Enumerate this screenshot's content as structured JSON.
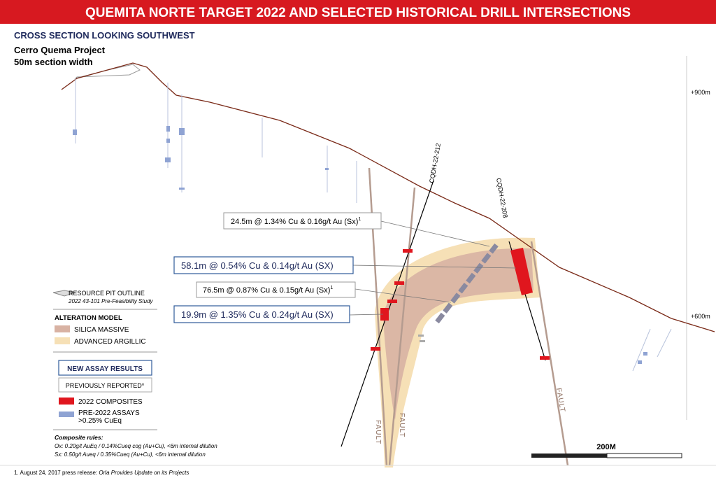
{
  "header": {
    "title": "QUEMITA NORTE TARGET 2022 AND SELECTED HISTORICAL DRILL INTERSECTIONS",
    "subtitle": "CROSS SECTION LOOKING SOUTHWEST"
  },
  "project": {
    "name": "Cerro Quema Project",
    "section_width": "50m section width"
  },
  "elevations": [
    "+900m",
    "+600m"
  ],
  "drill_holes": [
    "CQDH-22-212",
    "CQDH-22-208"
  ],
  "intersections": [
    {
      "text": "24.5m @ 1.34% Cu & 0.16g/t Au (Sx)",
      "note": "1"
    },
    {
      "text": "58.1m @ 0.54% Cu & 0.14g/t Au (SX)"
    },
    {
      "text": "76.5m @ 0.87% Cu & 0.15g/t Au (Sx)",
      "note": "1"
    },
    {
      "text": "19.9m @ 1.35% Cu & 0.24g/t Au (SX)"
    }
  ],
  "faults": [
    "FAULT",
    "FAULT",
    "FAULT"
  ],
  "legend": {
    "pit_outline": "RESOURCE PIT OUTLINE",
    "pit_study": "2022 43-101 Pre-Feasibility Study",
    "alteration_title": "ALTERATION MODEL",
    "silica": "SILICA MASSIVE",
    "argillic": "ADVANCED ARGILLIC",
    "new_results": "NEW ASSAY RESULTS",
    "previously": "PREVIOUSLY REPORTED*",
    "composites": "2022 COMPOSITES",
    "pre_assays": [
      "PRE-2022 ASSAYS",
      ">0.25% CuEq"
    ]
  },
  "composite_rules": {
    "title": "Composite rules:",
    "lines": [
      "Ox: 0.20g/t AuEq / 0.14%Cueq cog (Au+Cu), <6m internal dilution",
      "Sx: 0.50g/t Aueq / 0.35%Cueq (Au+Cu), <6m internal dilution"
    ]
  },
  "scale": "200M",
  "footnote": {
    "text": "1. August 24, 2017 press release: ",
    "source": "Orla Provides Update on its Projects"
  }
}
